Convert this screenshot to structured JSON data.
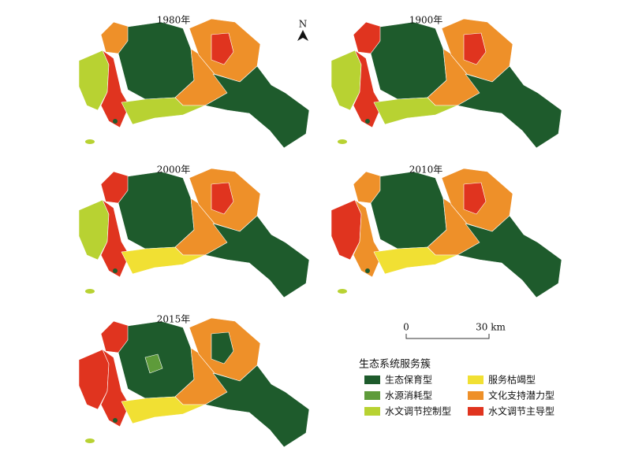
{
  "panels": [
    {
      "title": "1980年"
    },
    {
      "title": "1900年"
    },
    {
      "title": "2000年"
    },
    {
      "title": "2010年"
    },
    {
      "title": "2015年"
    }
  ],
  "north_arrow": {
    "label": "N"
  },
  "scale_bar": {
    "labels": [
      "0",
      "30 km"
    ]
  },
  "legend": {
    "title": "生态系统服务簇",
    "items": [
      {
        "label": "生态保育型",
        "color": "#1e5b2c"
      },
      {
        "label": "水源消耗型",
        "color": "#5e9b3a"
      },
      {
        "label": "水文调节控制型",
        "color": "#b8d232"
      },
      {
        "label": "服务枯竭型",
        "color": "#f1e033"
      },
      {
        "label": "文化支持潜力型",
        "color": "#ee9029"
      },
      {
        "label": "水文调节主导型",
        "color": "#e0341f"
      }
    ]
  }
}
